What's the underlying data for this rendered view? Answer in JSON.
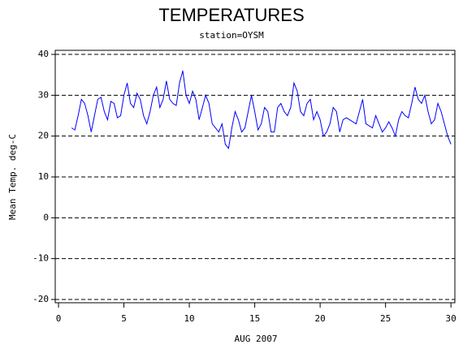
{
  "chart_data": {
    "type": "line",
    "title": "TEMPERATURES",
    "subtitle": "station=OYSM",
    "x_label": "AUG 2007",
    "y_label": "Mean Temp. deg-C",
    "xlim": [
      -0.25,
      30.3
    ],
    "xticks": [
      0,
      5,
      10,
      15,
      20,
      25,
      30
    ],
    "ylim": [
      -20.8,
      41
    ],
    "yticks": [
      40,
      30,
      20,
      10,
      0,
      -10,
      -20
    ],
    "grid": true,
    "color": "#0000ff",
    "x": [
      1.0,
      1.25,
      1.5,
      1.75,
      2.0,
      2.25,
      2.5,
      2.75,
      3.0,
      3.25,
      3.5,
      3.75,
      4.0,
      4.25,
      4.5,
      4.75,
      5.0,
      5.25,
      5.5,
      5.75,
      6.0,
      6.25,
      6.5,
      6.75,
      7.0,
      7.25,
      7.5,
      7.75,
      8.0,
      8.25,
      8.5,
      8.75,
      9.0,
      9.25,
      9.5,
      9.75,
      10.0,
      10.25,
      10.5,
      10.75,
      11.0,
      11.25,
      11.5,
      11.75,
      12.0,
      12.25,
      12.5,
      12.75,
      13.0,
      13.25,
      13.5,
      13.75,
      14.0,
      14.25,
      14.5,
      14.75,
      15.0,
      15.25,
      15.5,
      15.75,
      16.0,
      16.25,
      16.5,
      16.75,
      17.0,
      17.25,
      17.5,
      17.75,
      18.0,
      18.25,
      18.5,
      18.75,
      19.0,
      19.25,
      19.5,
      19.75,
      20.0,
      20.25,
      20.5,
      20.75,
      21.0,
      21.25,
      21.5,
      21.75,
      22.0,
      22.25,
      22.5,
      22.75,
      23.0,
      23.25,
      23.5,
      23.75,
      24.0,
      24.25,
      24.5,
      24.75,
      25.0,
      25.25,
      25.5,
      25.75,
      26.0,
      26.25,
      26.5,
      26.75,
      27.0,
      27.25,
      27.5,
      27.75,
      28.0,
      28.25,
      28.5,
      28.75,
      29.0,
      29.25,
      29.5,
      29.75,
      30.0
    ],
    "values": [
      22,
      21.5,
      25,
      29,
      28,
      25,
      21,
      25,
      29,
      29.5,
      26,
      24,
      28.5,
      28,
      24.5,
      25,
      30,
      33,
      28,
      27,
      30.5,
      29,
      25,
      23,
      26,
      30,
      32,
      27,
      29,
      33.5,
      29,
      28,
      27.5,
      33,
      36,
      30,
      28,
      31,
      29,
      24,
      27,
      30,
      28,
      23,
      22,
      21,
      23,
      18,
      17,
      22,
      26,
      24,
      21,
      22,
      26,
      30,
      26,
      21.5,
      23,
      27,
      26,
      21,
      21,
      27,
      28,
      26,
      25,
      27,
      33,
      31,
      26,
      25,
      28,
      29,
      24,
      26,
      24,
      20,
      21,
      23,
      27,
      26,
      21,
      24,
      24.5,
      24,
      23.5,
      23,
      26,
      29,
      23,
      22.5,
      22,
      25,
      23,
      21,
      22,
      23.5,
      22,
      20,
      24,
      26,
      25,
      24.5,
      28,
      32,
      29,
      28,
      30,
      26,
      23,
      24,
      28,
      26,
      23,
      20,
      18
    ]
  }
}
